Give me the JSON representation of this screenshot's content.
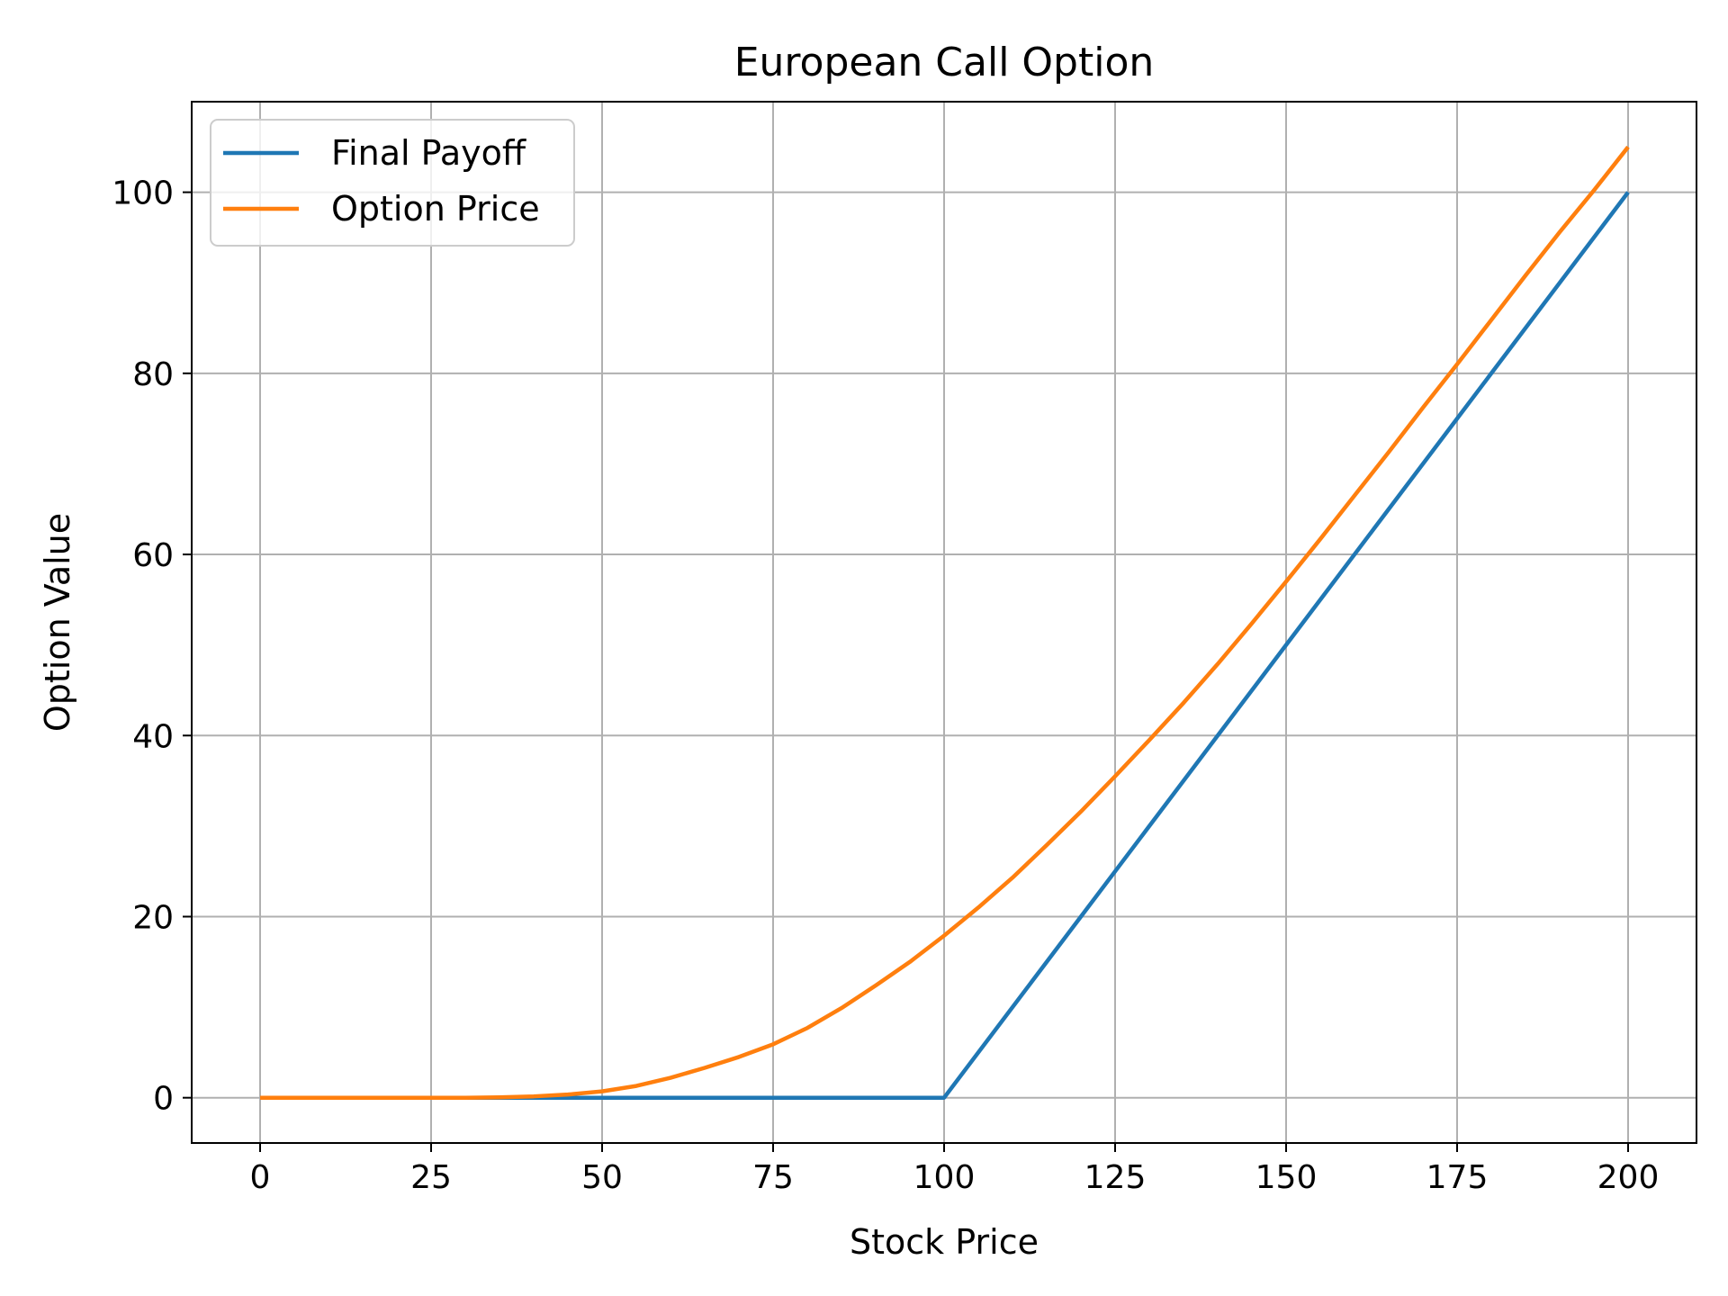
{
  "chart_data": {
    "type": "line",
    "title": "European Call Option",
    "xlabel": "Stock Price",
    "ylabel": "Option Value",
    "xlim": [
      -10,
      210
    ],
    "ylim": [
      -5,
      110
    ],
    "xticks": [
      0,
      25,
      50,
      75,
      100,
      125,
      150,
      175,
      200
    ],
    "yticks": [
      0,
      20,
      40,
      60,
      80,
      100
    ],
    "xtick_labels": [
      "0",
      "25",
      "50",
      "75",
      "100",
      "125",
      "150",
      "175",
      "200"
    ],
    "ytick_labels": [
      "0",
      "20",
      "40",
      "60",
      "80",
      "100"
    ],
    "grid": true,
    "legend_position": "top-left",
    "series": [
      {
        "name": "Final Payoff",
        "color": "#1f77b4",
        "x": [
          0,
          25,
          50,
          75,
          100,
          125,
          150,
          175,
          200
        ],
        "y": [
          0,
          0,
          0,
          0,
          0,
          25,
          50,
          75,
          100
        ]
      },
      {
        "name": "Option Price",
        "color": "#ff7f0e",
        "x": [
          0,
          25,
          30,
          35,
          40,
          45,
          50,
          55,
          60,
          65,
          70,
          75,
          80,
          85,
          90,
          95,
          100,
          105,
          110,
          115,
          120,
          125,
          130,
          135,
          140,
          145,
          150,
          155,
          160,
          165,
          170,
          175,
          180,
          185,
          190,
          195,
          200
        ],
        "y": [
          0,
          0,
          0,
          0.05,
          0.15,
          0.35,
          0.7,
          1.3,
          2.2,
          3.3,
          4.5,
          5.9,
          7.7,
          9.9,
          12.4,
          15.0,
          17.9,
          21.0,
          24.3,
          27.9,
          31.6,
          35.5,
          39.5,
          43.6,
          47.9,
          52.4,
          57.0,
          61.7,
          66.5,
          71.3,
          76.2,
          81.0,
          85.9,
          90.8,
          95.6,
          100.2,
          105.0
        ]
      }
    ]
  }
}
